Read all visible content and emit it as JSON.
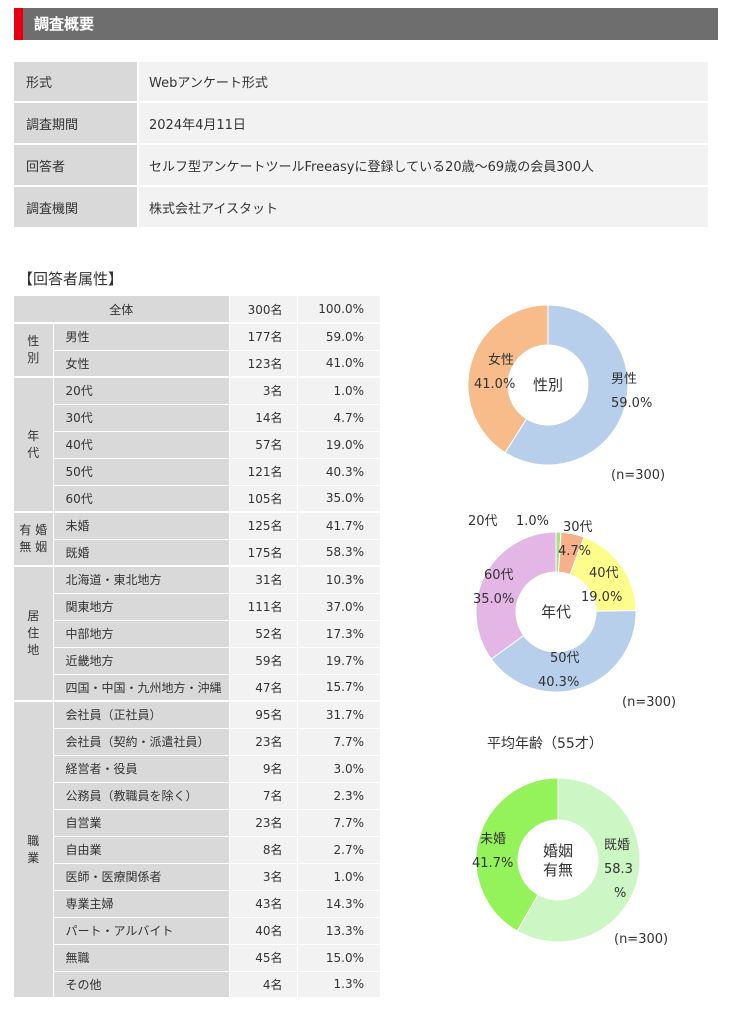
{
  "header": {
    "title": "調査概要"
  },
  "overview": [
    {
      "label": "形式",
      "value": "Webアンケート形式"
    },
    {
      "label": "調査期間",
      "value": "2024年4月11日"
    },
    {
      "label": "回答者",
      "value": "セルフ型アンケートツールFreeasyに登録している20歳～69歳の会員300人"
    },
    {
      "label": "調査機関",
      "value": "株式会社アイスタット"
    }
  ],
  "attributes_title": "【回答者属性】",
  "table": {
    "total": {
      "label": "全体",
      "count": "300名",
      "pct": "100.0%"
    },
    "groups": [
      {
        "name": "性\n別",
        "rows": [
          {
            "label": "男性",
            "count": "177名",
            "pct": "59.0%"
          },
          {
            "label": "女性",
            "count": "123名",
            "pct": "41.0%"
          }
        ]
      },
      {
        "name": "年\n代",
        "rows": [
          {
            "label": "20代",
            "count": "3名",
            "pct": "1.0%"
          },
          {
            "label": "30代",
            "count": "14名",
            "pct": "4.7%"
          },
          {
            "label": "40代",
            "count": "57名",
            "pct": "19.0%"
          },
          {
            "label": "50代",
            "count": "121名",
            "pct": "40.3%"
          },
          {
            "label": "60代",
            "count": "105名",
            "pct": "35.0%"
          }
        ]
      },
      {
        "name": "有 婚\n無 姻",
        "rows": [
          {
            "label": "未婚",
            "count": "125名",
            "pct": "41.7%"
          },
          {
            "label": "既婚",
            "count": "175名",
            "pct": "58.3%"
          }
        ]
      },
      {
        "name": "居\n住\n地",
        "rows": [
          {
            "label": "北海道・東北地方",
            "count": "31名",
            "pct": "10.3%"
          },
          {
            "label": "関東地方",
            "count": "111名",
            "pct": "37.0%"
          },
          {
            "label": "中部地方",
            "count": "52名",
            "pct": "17.3%"
          },
          {
            "label": "近畿地方",
            "count": "59名",
            "pct": "19.7%"
          },
          {
            "label": "四国・中国・九州地方・沖縄",
            "count": "47名",
            "pct": "15.7%"
          }
        ]
      },
      {
        "name": "職\n業",
        "rows": [
          {
            "label": "会社員（正社員）",
            "count": "95名",
            "pct": "31.7%"
          },
          {
            "label": "会社員（契約・派遣社員）",
            "count": "23名",
            "pct": "7.7%"
          },
          {
            "label": "経営者・役員",
            "count": "9名",
            "pct": "3.0%"
          },
          {
            "label": "公務員（教職員を除く）",
            "count": "7名",
            "pct": "2.3%"
          },
          {
            "label": "自営業",
            "count": "23名",
            "pct": "7.7%"
          },
          {
            "label": "自由業",
            "count": "8名",
            "pct": "2.7%"
          },
          {
            "label": "医師・医療関係者",
            "count": "3名",
            "pct": "1.0%"
          },
          {
            "label": "専業主婦",
            "count": "43名",
            "pct": "14.3%"
          },
          {
            "label": "パート・アルバイト",
            "count": "40名",
            "pct": "13.3%"
          },
          {
            "label": "無職",
            "count": "45名",
            "pct": "15.0%"
          },
          {
            "label": "その他",
            "count": "4名",
            "pct": "1.3%"
          }
        ]
      }
    ]
  },
  "chart_data": [
    {
      "type": "pie",
      "center_label": "性別",
      "n_label": "(n=300)",
      "slices": [
        {
          "label": "男性",
          "value": 59.0,
          "value_label": "59.0%",
          "color": "#b8cfec"
        },
        {
          "label": "女性",
          "value": 41.0,
          "value_label": "41.0%",
          "color": "#f7bc8a"
        }
      ]
    },
    {
      "type": "pie",
      "center_label": "年代",
      "n_label": "(n=300)",
      "slices": [
        {
          "label": "20代",
          "value": 1.0,
          "value_label": "1.0%",
          "color": "#a8e08c"
        },
        {
          "label": "30代",
          "value": 4.7,
          "value_label": "4.7%",
          "color": "#f7b18a"
        },
        {
          "label": "40代",
          "value": 19.0,
          "value_label": "19.0%",
          "color": "#fdfd8c"
        },
        {
          "label": "50代",
          "value": 40.3,
          "value_label": "40.3%",
          "color": "#b8cfec"
        },
        {
          "label": "60代",
          "value": 35.0,
          "value_label": "35.0%",
          "color": "#e4b6e6"
        }
      ]
    },
    {
      "type": "pie",
      "title": "平均年齢（55才）",
      "center_label": "婚姻\n有無",
      "n_label": "(n=300)",
      "slices": [
        {
          "label": "既婚",
          "value": 58.3,
          "value_label": "58.3\n%",
          "color": "#ccf7c4"
        },
        {
          "label": "未婚",
          "value": 41.7,
          "value_label": "41.7%",
          "color": "#94f35a"
        }
      ]
    }
  ]
}
